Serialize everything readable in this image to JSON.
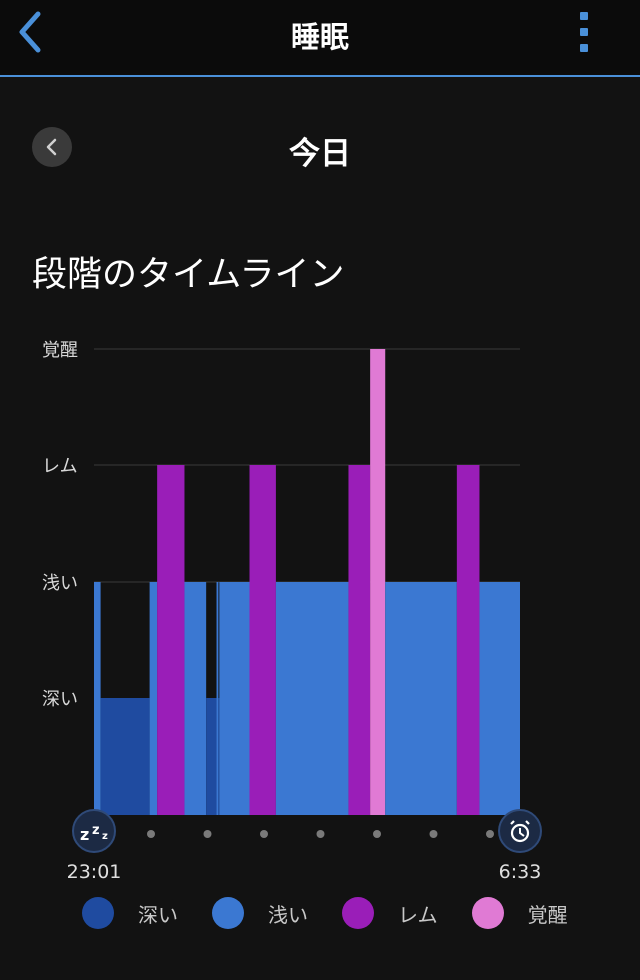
{
  "header": {
    "title": "睡眠",
    "back_icon": "chevron-left-icon",
    "menu_icon": "more-vertical-icon",
    "accent": "#4a90d9"
  },
  "date_nav": {
    "label": "今日",
    "prev_icon": "chevron-left-icon"
  },
  "section_title": "段階のタイムライン",
  "chart_data": {
    "type": "bar",
    "title": "段階のタイムライン",
    "y_levels": [
      "深い",
      "浅い",
      "レム",
      "覚醒"
    ],
    "x_start": "23:01",
    "x_end": "6:33",
    "start_icon": "zzz-icon",
    "end_icon": "alarm-clock-icon",
    "x_unit": "minutes since sleep start",
    "x_range": [
      0,
      452
    ],
    "segments": [
      {
        "stage": "浅い",
        "start": 0,
        "end": 7
      },
      {
        "stage": "深い",
        "start": 7,
        "end": 59
      },
      {
        "stage": "浅い",
        "start": 59,
        "end": 67
      },
      {
        "stage": "レム",
        "start": 67,
        "end": 96
      },
      {
        "stage": "浅い",
        "start": 96,
        "end": 119
      },
      {
        "stage": "深い",
        "start": 119,
        "end": 130
      },
      {
        "stage": "浅い",
        "start": 130,
        "end": 132
      },
      {
        "stage": "深い",
        "start": 132,
        "end": 133
      },
      {
        "stage": "浅い",
        "start": 133,
        "end": 165
      },
      {
        "stage": "レム",
        "start": 165,
        "end": 193
      },
      {
        "stage": "浅い",
        "start": 193,
        "end": 270
      },
      {
        "stage": "レム",
        "start": 270,
        "end": 293
      },
      {
        "stage": "覚醒",
        "start": 293,
        "end": 309
      },
      {
        "stage": "浅い",
        "start": 309,
        "end": 385
      },
      {
        "stage": "レム",
        "start": 385,
        "end": 409
      },
      {
        "stage": "浅い",
        "start": 409,
        "end": 452
      }
    ],
    "colors": {
      "深い": "#1f4ba0",
      "浅い": "#3b78d2",
      "レム": "#9a1eb8",
      "覚醒": "#e07ad4"
    },
    "grid": true
  },
  "legend": [
    {
      "label": "深い",
      "color": "#1f4ba0"
    },
    {
      "label": "浅い",
      "color": "#3b78d2"
    },
    {
      "label": "レム",
      "color": "#9a1eb8"
    },
    {
      "label": "覚醒",
      "color": "#e07ad4"
    }
  ]
}
